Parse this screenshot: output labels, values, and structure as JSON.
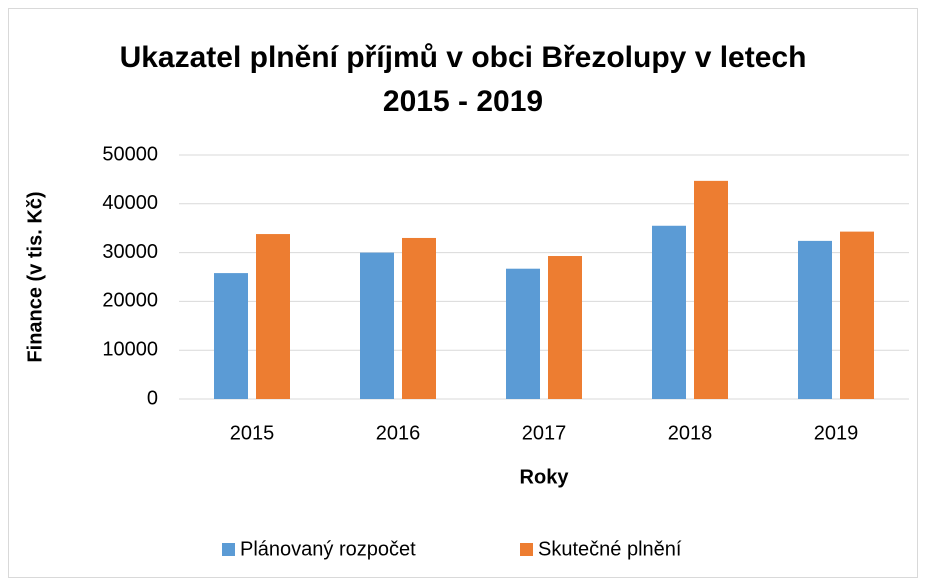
{
  "chart_data": {
    "type": "bar",
    "title": "Ukazatel plnění příjmů v obci Březolupy v letech 2015 - 2019",
    "x_label": "Roky",
    "y_label": "Finance (v tis. Kč)",
    "categories": [
      "2015",
      "2016",
      "2017",
      "2018",
      "2019"
    ],
    "series": [
      {
        "name": "Plánovaný rozpočet",
        "color": "#5b9bd5",
        "values": [
          25800,
          30000,
          26700,
          35500,
          32400
        ]
      },
      {
        "name": "Skutečné plnění",
        "color": "#ed7d31",
        "values": [
          33800,
          33000,
          29300,
          44700,
          34300
        ]
      }
    ],
    "ylim": [
      0,
      50000
    ],
    "yticks": [
      0,
      10000,
      20000,
      30000,
      40000,
      50000
    ],
    "grid": true,
    "legend": "bottom"
  }
}
